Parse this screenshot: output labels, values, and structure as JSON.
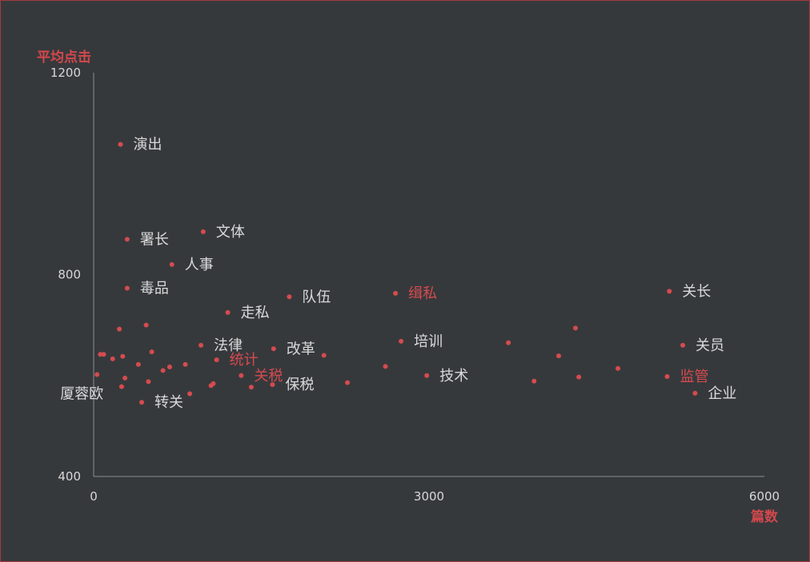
{
  "chart_data": {
    "type": "scatter",
    "xlabel": "篇数",
    "ylabel": "平均点击",
    "xlim": [
      0,
      6000
    ],
    "ylim": [
      400,
      1200
    ],
    "xticks": [
      "0",
      "3000",
      "6000"
    ],
    "yticks": [
      "400",
      "800",
      "1200"
    ],
    "grid": false,
    "accent": "#d54b4f",
    "points": [
      {
        "x": 240,
        "y": 1058,
        "label": "演出"
      },
      {
        "x": 300,
        "y": 870,
        "label": "署长"
      },
      {
        "x": 980,
        "y": 885,
        "label": "文体"
      },
      {
        "x": 700,
        "y": 820,
        "label": "人事"
      },
      {
        "x": 300,
        "y": 773,
        "label": "毒品"
      },
      {
        "x": 1750,
        "y": 756,
        "label": "队伍"
      },
      {
        "x": 1200,
        "y": 725,
        "label": "走私"
      },
      {
        "x": 2700,
        "y": 763,
        "label": "缉私",
        "highlight": true
      },
      {
        "x": 5150,
        "y": 767,
        "label": "关长"
      },
      {
        "x": 2750,
        "y": 668,
        "label": "培训"
      },
      {
        "x": 5270,
        "y": 660,
        "label": "关员"
      },
      {
        "x": 960,
        "y": 660,
        "label": "法律"
      },
      {
        "x": 1610,
        "y": 653,
        "label": "改革"
      },
      {
        "x": 1100,
        "y": 631,
        "label": "统计",
        "highlight": true
      },
      {
        "x": 1320,
        "y": 600,
        "label": "关税",
        "highlight": true
      },
      {
        "x": 2980,
        "y": 600,
        "label": "技术"
      },
      {
        "x": 5130,
        "y": 598,
        "label": "监管",
        "highlight": true
      },
      {
        "x": 1600,
        "y": 582,
        "label": "保税"
      },
      {
        "x": 5380,
        "y": 565,
        "label": "企业"
      },
      {
        "x": 430,
        "y": 547,
        "label": "转关"
      },
      {
        "x": 30,
        "y": 602,
        "label": "厦蓉欧"
      },
      {
        "x": 60,
        "y": 642
      },
      {
        "x": 90,
        "y": 642
      },
      {
        "x": 170,
        "y": 633
      },
      {
        "x": 260,
        "y": 638
      },
      {
        "x": 230,
        "y": 692
      },
      {
        "x": 470,
        "y": 700
      },
      {
        "x": 520,
        "y": 647
      },
      {
        "x": 400,
        "y": 622
      },
      {
        "x": 280,
        "y": 595
      },
      {
        "x": 250,
        "y": 578
      },
      {
        "x": 490,
        "y": 588
      },
      {
        "x": 620,
        "y": 610
      },
      {
        "x": 680,
        "y": 617
      },
      {
        "x": 820,
        "y": 622
      },
      {
        "x": 860,
        "y": 564
      },
      {
        "x": 1050,
        "y": 580
      },
      {
        "x": 1070,
        "y": 584
      },
      {
        "x": 1410,
        "y": 577
      },
      {
        "x": 2060,
        "y": 640
      },
      {
        "x": 2270,
        "y": 586
      },
      {
        "x": 2610,
        "y": 618
      },
      {
        "x": 3710,
        "y": 665
      },
      {
        "x": 3940,
        "y": 589
      },
      {
        "x": 4160,
        "y": 639
      },
      {
        "x": 4310,
        "y": 694
      },
      {
        "x": 4340,
        "y": 597
      },
      {
        "x": 4690,
        "y": 614
      }
    ]
  }
}
